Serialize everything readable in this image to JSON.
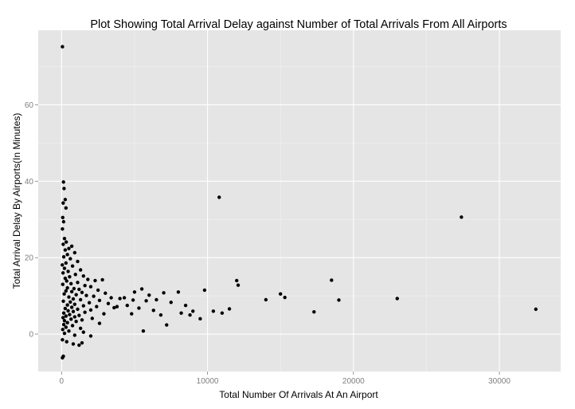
{
  "chart_data": {
    "type": "scatter",
    "title": "Plot Showing Total Arrival Delay against Number of Total Arrivals From All Airports",
    "xlabel": "Total Number Of Arrivals At An Airport",
    "ylabel": "Total Arrival Delay By Airports(In Minutes)",
    "xlim": [
      -1600,
      34200
    ],
    "ylim": [
      -9.8,
      79.5
    ],
    "x_ticks": [
      0,
      10000,
      20000,
      30000
    ],
    "x_tick_labels": [
      "0",
      "10000",
      "20000",
      "30000"
    ],
    "y_ticks": [
      0,
      20,
      40,
      60
    ],
    "y_tick_labels": [
      "0",
      "20",
      "40",
      "60"
    ],
    "grid": true,
    "point_color": "#000000",
    "panel_color": "#e5e5e5",
    "points": [
      [
        60,
        75.2
      ],
      [
        130,
        39.8
      ],
      [
        170,
        38.1
      ],
      [
        250,
        35.2
      ],
      [
        110,
        34.3
      ],
      [
        300,
        33.0
      ],
      [
        80,
        30.5
      ],
      [
        140,
        29.4
      ],
      [
        60,
        27.5
      ],
      [
        200,
        25.0
      ],
      [
        320,
        24.1
      ],
      [
        110,
        23.5
      ],
      [
        700,
        23.0
      ],
      [
        500,
        22.4
      ],
      [
        250,
        22.0
      ],
      [
        900,
        21.3
      ],
      [
        400,
        20.8
      ],
      [
        150,
        20.2
      ],
      [
        600,
        19.7
      ],
      [
        1100,
        19.0
      ],
      [
        300,
        18.6
      ],
      [
        50,
        18.1
      ],
      [
        750,
        17.8
      ],
      [
        200,
        17.2
      ],
      [
        1300,
        16.8
      ],
      [
        450,
        16.4
      ],
      [
        100,
        16.0
      ],
      [
        950,
        15.6
      ],
      [
        1500,
        15.2
      ],
      [
        550,
        15.0
      ],
      [
        250,
        14.6
      ],
      [
        1800,
        14.3
      ],
      [
        2300,
        14.0
      ],
      [
        2800,
        14.2
      ],
      [
        350,
        13.9
      ],
      [
        1100,
        13.5
      ],
      [
        650,
        13.2
      ],
      [
        80,
        13.0
      ],
      [
        1600,
        12.7
      ],
      [
        2000,
        12.4
      ],
      [
        400,
        12.1
      ],
      [
        850,
        11.9
      ],
      [
        1200,
        11.7
      ],
      [
        2500,
        11.5
      ],
      [
        300,
        11.3
      ],
      [
        700,
        11.1
      ],
      [
        1400,
        10.9
      ],
      [
        3000,
        10.7
      ],
      [
        180,
        10.5
      ],
      [
        1000,
        10.3
      ],
      [
        1700,
        10.1
      ],
      [
        2200,
        9.9
      ],
      [
        500,
        9.7
      ],
      [
        3400,
        9.5
      ],
      [
        4000,
        9.3
      ],
      [
        800,
        9.2
      ],
      [
        1300,
        9.0
      ],
      [
        2600,
        8.8
      ],
      [
        120,
        8.6
      ],
      [
        600,
        8.4
      ],
      [
        1900,
        8.2
      ],
      [
        3200,
        8.0
      ],
      [
        900,
        7.8
      ],
      [
        400,
        7.6
      ],
      [
        1500,
        7.4
      ],
      [
        2400,
        7.2
      ],
      [
        700,
        7.0
      ],
      [
        3600,
        6.9
      ],
      [
        250,
        6.7
      ],
      [
        1100,
        6.5
      ],
      [
        2000,
        6.3
      ],
      [
        450,
        6.1
      ],
      [
        800,
        5.9
      ],
      [
        1600,
        5.7
      ],
      [
        150,
        5.5
      ],
      [
        2900,
        5.3
      ],
      [
        550,
        5.1
      ],
      [
        1200,
        4.9
      ],
      [
        300,
        4.7
      ],
      [
        900,
        4.5
      ],
      [
        100,
        4.3
      ],
      [
        2100,
        4.1
      ],
      [
        650,
        3.9
      ],
      [
        1400,
        3.7
      ],
      [
        200,
        3.5
      ],
      [
        1000,
        3.3
      ],
      [
        400,
        3.0
      ],
      [
        2600,
        2.8
      ],
      [
        150,
        2.5
      ],
      [
        750,
        2.2
      ],
      [
        300,
        1.8
      ],
      [
        1300,
        1.5
      ],
      [
        80,
        1.2
      ],
      [
        500,
        0.8
      ],
      [
        1500,
        0.5
      ],
      [
        200,
        0.2
      ],
      [
        900,
        -0.3
      ],
      [
        60,
        -1.5
      ],
      [
        350,
        -2.0
      ],
      [
        1400,
        -2.3
      ],
      [
        800,
        -2.6
      ],
      [
        120,
        -5.8
      ],
      [
        60,
        -6.2
      ],
      [
        1200,
        -2.9
      ],
      [
        2000,
        -0.5
      ],
      [
        4500,
        7.5
      ],
      [
        5000,
        11.0
      ],
      [
        5500,
        11.8
      ],
      [
        6000,
        10.2
      ],
      [
        6500,
        9.0
      ],
      [
        7000,
        10.8
      ],
      [
        7500,
        8.3
      ],
      [
        8000,
        11.0
      ],
      [
        8500,
        7.5
      ],
      [
        9000,
        6.0
      ],
      [
        9500,
        4.0
      ],
      [
        9800,
        11.5
      ],
      [
        4800,
        5.3
      ],
      [
        5300,
        6.8
      ],
      [
        5800,
        8.7
      ],
      [
        6300,
        6.2
      ],
      [
        6800,
        5.0
      ],
      [
        7200,
        2.4
      ],
      [
        8200,
        5.5
      ],
      [
        8800,
        5.0
      ],
      [
        5600,
        0.8
      ],
      [
        4300,
        9.5
      ],
      [
        3800,
        7.2
      ],
      [
        4900,
        8.9
      ],
      [
        10400,
        6.0
      ],
      [
        11000,
        5.5
      ],
      [
        11500,
        6.6
      ],
      [
        12000,
        14.0
      ],
      [
        12100,
        12.8
      ],
      [
        10800,
        35.8
      ],
      [
        14000,
        9.0
      ],
      [
        15000,
        10.5
      ],
      [
        15300,
        9.6
      ],
      [
        17300,
        5.8
      ],
      [
        18500,
        14.1
      ],
      [
        19000,
        8.9
      ],
      [
        23000,
        9.3
      ],
      [
        27400,
        30.6
      ],
      [
        32500,
        6.5
      ]
    ]
  }
}
